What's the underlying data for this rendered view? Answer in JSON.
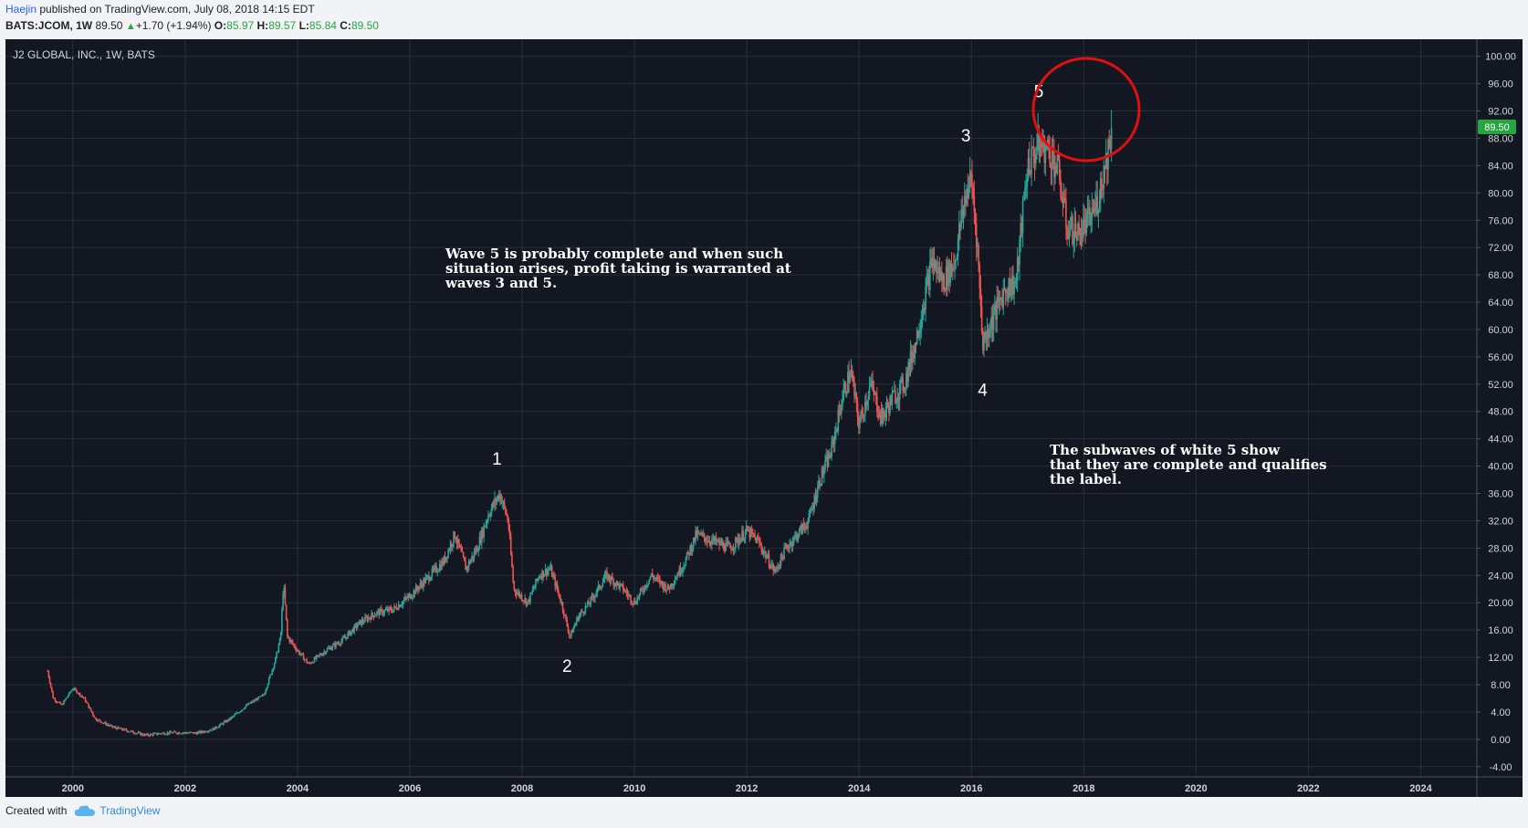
{
  "header": {
    "user": "Haejin",
    "published": " published on TradingView.com, July 08, 2018 14:15 EDT",
    "symbol": "BATS:JCOM, 1W",
    "last": "89.50",
    "change": "+1.70 (+1.94%)",
    "o_label": "O:",
    "o_val": "85.97",
    "h_label": "H:",
    "h_val": "89.57",
    "l_label": "L:",
    "l_val": "85.84",
    "c_label": "C:",
    "c_val": "89.50"
  },
  "chart_title": "J2 GLOBAL, INC., 1W, BATS",
  "price_tag": "89.50",
  "notes": {
    "wave5": "Wave 5 is probably complete and when such\nsituation arises, profit taking is warranted at\nwaves 3 and 5.",
    "subwaves": "The subwaves of white 5 show\nthat they are complete and qualifies\nthe label."
  },
  "wave_labels": [
    {
      "text": "1",
      "date": 2007.55,
      "price": 40.2
    },
    {
      "text": "2",
      "date": 2008.8,
      "price": 9.9
    },
    {
      "text": "3",
      "date": 2015.9,
      "price": 87.5
    },
    {
      "text": "4",
      "date": 2016.2,
      "price": 50.3
    },
    {
      "text": "5",
      "date": 2017.2,
      "price": 94.0
    }
  ],
  "footer": {
    "created": "Created with",
    "brand": "TradingView"
  },
  "colors": {
    "bg": "#131722",
    "grid": "#2a2e39",
    "up": "#26a69a",
    "down": "#ef5350",
    "circle": "#e01010",
    "tag": "#26a641"
  },
  "chart_data": {
    "type": "candlestick",
    "title": "J2 GLOBAL, INC., 1W, BATS",
    "xlim": [
      1998.8,
      2025.0
    ],
    "ylim": [
      -5.5,
      102.5
    ],
    "x_ticks": [
      "2000",
      "2002",
      "2004",
      "2006",
      "2008",
      "2010",
      "2012",
      "2014",
      "2016",
      "2018",
      "2020",
      "2022",
      "2024"
    ],
    "y_ticks": [
      "100.00",
      "96.00",
      "92.00",
      "88.00",
      "84.00",
      "80.00",
      "76.00",
      "72.00",
      "68.00",
      "64.00",
      "60.00",
      "56.00",
      "52.00",
      "48.00",
      "44.00",
      "40.00",
      "36.00",
      "32.00",
      "28.00",
      "24.00",
      "20.00",
      "16.00",
      "12.00",
      "8.00",
      "4.00",
      "0.00",
      "-4.00"
    ],
    "last_price": 89.5,
    "path": [
      [
        1999.55,
        10.0
      ],
      [
        1999.65,
        6.0
      ],
      [
        1999.8,
        5.0
      ],
      [
        2000.0,
        7.5
      ],
      [
        2000.2,
        6.0
      ],
      [
        2000.4,
        3.0
      ],
      [
        2000.7,
        1.8
      ],
      [
        2001.0,
        1.2
      ],
      [
        2001.3,
        0.6
      ],
      [
        2001.6,
        0.9
      ],
      [
        2001.9,
        1.0
      ],
      [
        2002.2,
        0.9
      ],
      [
        2002.5,
        1.5
      ],
      [
        2002.8,
        3.0
      ],
      [
        2003.1,
        5.0
      ],
      [
        2003.4,
        6.5
      ],
      [
        2003.6,
        11.5
      ],
      [
        2003.7,
        15.0
      ],
      [
        2003.75,
        23.0
      ],
      [
        2003.82,
        15.0
      ],
      [
        2004.0,
        13.0
      ],
      [
        2004.2,
        11.0
      ],
      [
        2004.5,
        13.0
      ],
      [
        2004.8,
        14.5
      ],
      [
        2005.1,
        17.0
      ],
      [
        2005.4,
        18.5
      ],
      [
        2005.7,
        19.0
      ],
      [
        2006.0,
        21.0
      ],
      [
        2006.3,
        23.5
      ],
      [
        2006.6,
        26.0
      ],
      [
        2006.8,
        30.0
      ],
      [
        2007.0,
        25.0
      ],
      [
        2007.2,
        28.0
      ],
      [
        2007.4,
        33.0
      ],
      [
        2007.6,
        36.0
      ],
      [
        2007.75,
        32.0
      ],
      [
        2007.85,
        22.0
      ],
      [
        2008.1,
        20.0
      ],
      [
        2008.3,
        24.0
      ],
      [
        2008.5,
        25.0
      ],
      [
        2008.7,
        20.0
      ],
      [
        2008.85,
        15.0
      ],
      [
        2009.0,
        18.0
      ],
      [
        2009.2,
        20.0
      ],
      [
        2009.5,
        24.0
      ],
      [
        2009.8,
        22.0
      ],
      [
        2010.0,
        20.0
      ],
      [
        2010.3,
        24.0
      ],
      [
        2010.6,
        22.0
      ],
      [
        2010.9,
        26.0
      ],
      [
        2011.1,
        30.0
      ],
      [
        2011.4,
        29.0
      ],
      [
        2011.7,
        28.0
      ],
      [
        2012.0,
        30.5
      ],
      [
        2012.2,
        29.0
      ],
      [
        2012.4,
        26.0
      ],
      [
        2012.5,
        24.5
      ],
      [
        2012.7,
        28.0
      ],
      [
        2012.9,
        30.0
      ],
      [
        2013.1,
        32.0
      ],
      [
        2013.3,
        38.0
      ],
      [
        2013.5,
        42.0
      ],
      [
        2013.7,
        50.0
      ],
      [
        2013.85,
        54.0
      ],
      [
        2014.0,
        46.0
      ],
      [
        2014.2,
        52.0
      ],
      [
        2014.4,
        47.0
      ],
      [
        2014.6,
        50.0
      ],
      [
        2014.8,
        52.0
      ],
      [
        2015.0,
        58.0
      ],
      [
        2015.15,
        64.0
      ],
      [
        2015.3,
        70.0
      ],
      [
        2015.5,
        67.0
      ],
      [
        2015.7,
        70.0
      ],
      [
        2015.9,
        80.0
      ],
      [
        2016.0,
        82.0
      ],
      [
        2016.1,
        73.0
      ],
      [
        2016.2,
        58.0
      ],
      [
        2016.4,
        62.0
      ],
      [
        2016.6,
        66.0
      ],
      [
        2016.8,
        67.0
      ],
      [
        2016.9,
        76.0
      ],
      [
        2017.0,
        84.0
      ],
      [
        2017.2,
        87.0
      ],
      [
        2017.4,
        86.0
      ],
      [
        2017.55,
        83.0
      ],
      [
        2017.7,
        75.0
      ],
      [
        2017.9,
        74.0
      ],
      [
        2018.1,
        76.0
      ],
      [
        2018.25,
        79.0
      ],
      [
        2018.4,
        85.0
      ],
      [
        2018.5,
        89.5
      ]
    ]
  }
}
